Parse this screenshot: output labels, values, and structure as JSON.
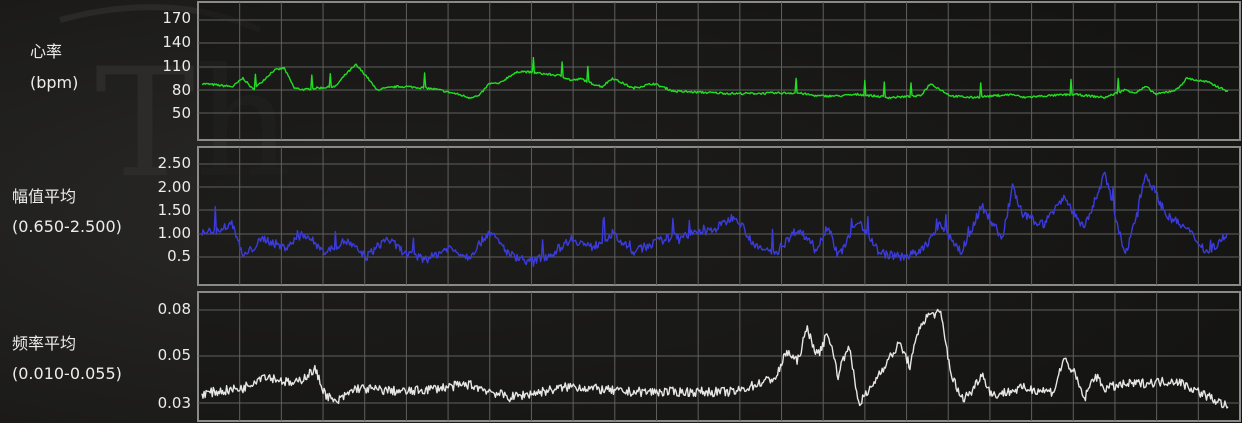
{
  "panels": [
    {
      "name": "heart-rate",
      "title": "心率",
      "subtitle": "(bpm)",
      "tick_labels": [
        "170",
        "140",
        "110",
        "80",
        "50"
      ],
      "color": "#22dd22"
    },
    {
      "name": "amplitude-average",
      "title": "幅值平均",
      "subtitle": "(0.650-2.500)",
      "tick_labels": [
        "2.50",
        "2.00",
        "1.50",
        "1.00",
        "0.5"
      ],
      "color": "#3b3bdc"
    },
    {
      "name": "frequency-average",
      "title": "频率平均",
      "subtitle": "(0.010-0.055)",
      "tick_labels": [
        "0.08",
        "0.05",
        "0.03"
      ],
      "color": "#e6e6e6"
    }
  ],
  "chart_data": [
    {
      "type": "line",
      "title": "",
      "ylabel": "心率 (bpm)",
      "y_ticks": [
        170,
        140,
        110,
        80,
        50
      ],
      "ylim": [
        30,
        185
      ],
      "grid": true,
      "series": [
        {
          "color": "#22dd22",
          "x": [
            0,
            3,
            4,
            5,
            7,
            8,
            9,
            10,
            11,
            13,
            14,
            15,
            16,
            17,
            19,
            20,
            22,
            23,
            25,
            26,
            27,
            28,
            29,
            30,
            31,
            35,
            36,
            37,
            38,
            39,
            40,
            42,
            44,
            46,
            52,
            58,
            60,
            62,
            64,
            67,
            70,
            71,
            73,
            75,
            77,
            79,
            80,
            82,
            85,
            88,
            90,
            91,
            92,
            93,
            95,
            96,
            97,
            98,
            100
          ],
          "y": [
            88,
            84,
            95,
            80,
            105,
            108,
            82,
            80,
            82,
            84,
            100,
            112,
            98,
            80,
            84,
            84,
            82,
            80,
            74,
            70,
            72,
            88,
            88,
            98,
            104,
            98,
            92,
            94,
            88,
            84,
            95,
            82,
            88,
            78,
            75,
            76,
            72,
            72,
            74,
            70,
            72,
            88,
            72,
            70,
            72,
            74,
            70,
            72,
            74,
            70,
            80,
            76,
            84,
            74,
            80,
            95,
            92,
            90,
            78
          ]
        }
      ]
    },
    {
      "type": "line",
      "title": "",
      "ylabel": "幅值平均 (0.650-2.500)",
      "y_ticks": [
        2.5,
        2.0,
        1.5,
        1.0,
        0.5
      ],
      "ylim": [
        0.1,
        2.75
      ],
      "grid": true,
      "series": [
        {
          "color": "#3b3bdc",
          "x": [
            0,
            3,
            4,
            6,
            8,
            10,
            12,
            14,
            16,
            18,
            20,
            22,
            24,
            26,
            28,
            30,
            32,
            34,
            36,
            38,
            40,
            42,
            44,
            46,
            48,
            50,
            52,
            54,
            56,
            58,
            60,
            61,
            62,
            64,
            66,
            68,
            70,
            72,
            74,
            76,
            78,
            79,
            80,
            82,
            84,
            86,
            88,
            90,
            92,
            94,
            96,
            98,
            100
          ],
          "y": [
            1.0,
            1.2,
            0.5,
            0.9,
            0.7,
            1.0,
            0.6,
            0.85,
            0.5,
            0.9,
            0.55,
            0.45,
            0.7,
            0.5,
            1.05,
            0.55,
            0.4,
            0.55,
            0.9,
            0.7,
            1.0,
            0.6,
            0.8,
            0.95,
            1.0,
            1.1,
            1.4,
            0.7,
            0.6,
            1.1,
            0.7,
            1.2,
            0.5,
            1.3,
            0.6,
            0.5,
            0.6,
            1.2,
            0.6,
            1.6,
            0.9,
            2.0,
            1.4,
            1.2,
            1.8,
            1.1,
            2.3,
            0.5,
            2.3,
            1.4,
            1.1,
            0.6,
            1.0
          ]
        }
      ]
    },
    {
      "type": "line",
      "title": "",
      "ylabel": "频率平均 (0.010-0.055)",
      "y_ticks": [
        0.08,
        0.05,
        0.03
      ],
      "ylim": [
        0.022,
        0.085
      ],
      "grid": true,
      "series": [
        {
          "color": "#e6e6e6",
          "x": [
            0,
            4,
            6,
            9,
            11,
            12,
            13,
            15,
            20,
            26,
            30,
            36,
            41,
            52,
            56,
            57,
            58,
            59,
            60,
            61,
            62,
            63,
            64,
            65,
            66,
            68,
            69,
            70,
            71,
            72,
            73,
            74,
            75,
            76,
            77,
            80,
            83,
            84,
            85,
            86,
            87,
            88,
            90,
            95,
            100
          ],
          "y": [
            0.035,
            0.038,
            0.045,
            0.04,
            0.048,
            0.035,
            0.03,
            0.038,
            0.036,
            0.04,
            0.033,
            0.039,
            0.036,
            0.036,
            0.044,
            0.058,
            0.052,
            0.07,
            0.055,
            0.068,
            0.045,
            0.062,
            0.03,
            0.036,
            0.046,
            0.062,
            0.05,
            0.072,
            0.078,
            0.078,
            0.046,
            0.032,
            0.036,
            0.046,
            0.034,
            0.038,
            0.036,
            0.054,
            0.046,
            0.032,
            0.045,
            0.038,
            0.04,
            0.042,
            0.028
          ]
        }
      ]
    }
  ]
}
